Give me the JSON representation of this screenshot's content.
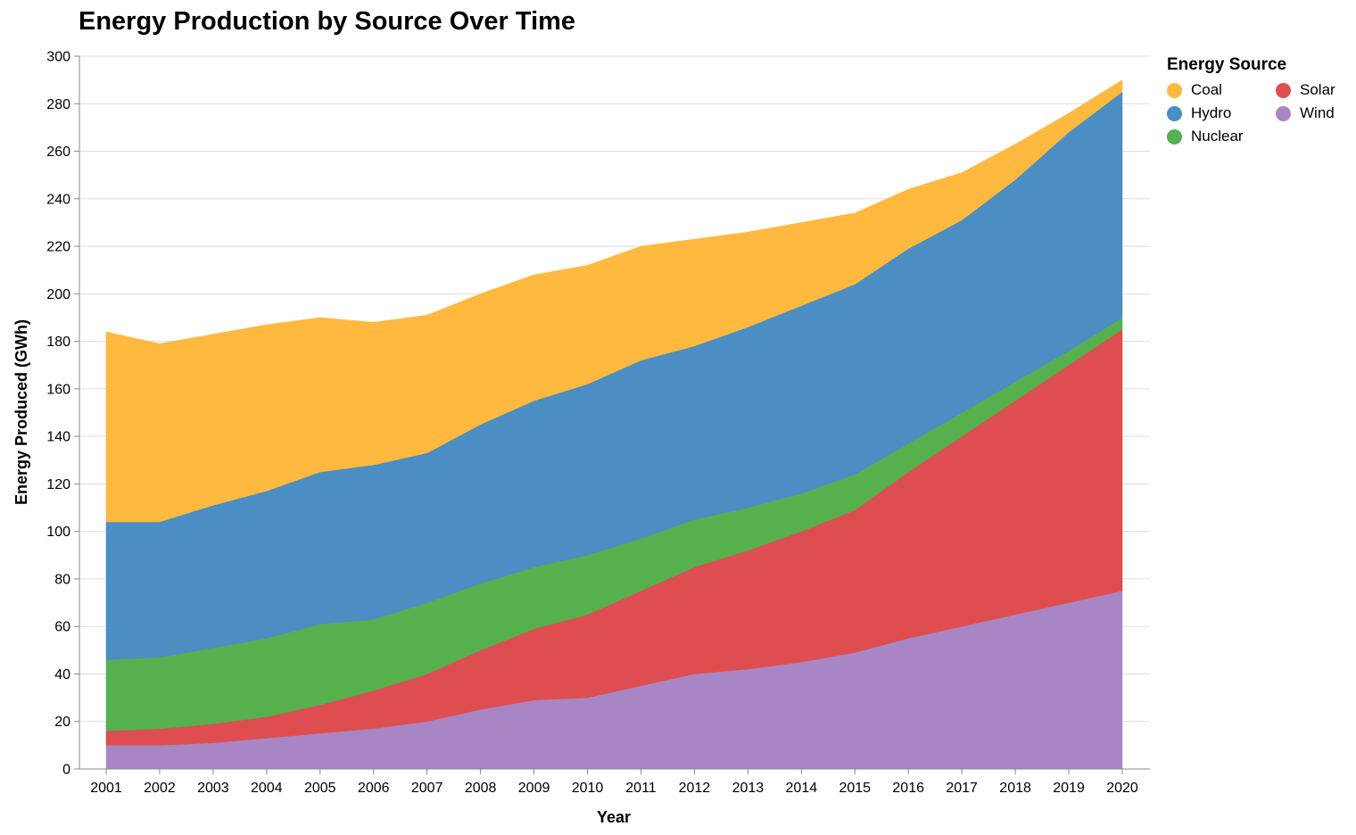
{
  "chart_data": {
    "type": "area",
    "stacked": true,
    "title": "Energy Production by Source Over Time",
    "xlabel": "Year",
    "ylabel": "Energy Produced (GWh)",
    "ylim": [
      0,
      300
    ],
    "yticks": [
      0,
      20,
      40,
      60,
      80,
      100,
      120,
      140,
      160,
      180,
      200,
      220,
      240,
      260,
      280,
      300
    ],
    "grid": true,
    "legend_title": "Energy Source",
    "legend_position": "top-right",
    "x": [
      "2001",
      "2002",
      "2003",
      "2004",
      "2005",
      "2006",
      "2007",
      "2008",
      "2009",
      "2010",
      "2011",
      "2012",
      "2013",
      "2014",
      "2015",
      "2016",
      "2017",
      "2018",
      "2019",
      "2020"
    ],
    "stack_order": [
      "Wind",
      "Solar",
      "Nuclear",
      "Hydro",
      "Coal"
    ],
    "legend_order": [
      "Coal",
      "Solar",
      "Hydro",
      "Wind",
      "Nuclear"
    ],
    "series": [
      {
        "name": "Coal",
        "color": "#FFB93F",
        "values": [
          80,
          75,
          72,
          70,
          65,
          60,
          58,
          55,
          53,
          50,
          48,
          45,
          40,
          35,
          30,
          25,
          20,
          15,
          8,
          5
        ]
      },
      {
        "name": "Hydro",
        "color": "#4A8EC3",
        "values": [
          58,
          57,
          60,
          62,
          64,
          65,
          63,
          67,
          70,
          72,
          75,
          73,
          76,
          79,
          80,
          82,
          81,
          85,
          92,
          95
        ]
      },
      {
        "name": "Nuclear",
        "color": "#55B04E",
        "values": [
          30,
          30,
          32,
          33,
          34,
          30,
          30,
          28,
          26,
          25,
          22,
          20,
          18,
          16,
          15,
          12,
          10,
          8,
          6,
          5
        ]
      },
      {
        "name": "Solar",
        "color": "#DE4E50",
        "values": [
          6,
          7,
          8,
          9,
          12,
          16,
          20,
          25,
          30,
          35,
          40,
          45,
          50,
          55,
          60,
          70,
          80,
          90,
          100,
          110
        ]
      },
      {
        "name": "Wind",
        "color": "#A886C6",
        "values": [
          10,
          10,
          11,
          13,
          15,
          17,
          20,
          25,
          29,
          30,
          35,
          40,
          42,
          45,
          49,
          55,
          60,
          65,
          70,
          75
        ]
      }
    ]
  }
}
